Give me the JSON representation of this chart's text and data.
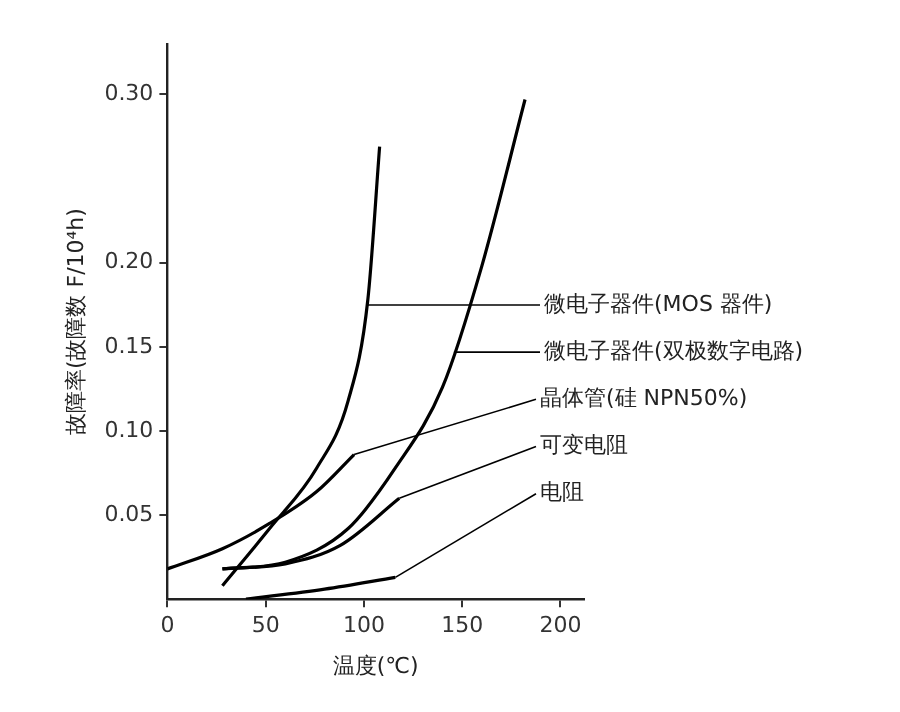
{
  "chart_data": {
    "type": "line",
    "xlabel": "温度(℃)",
    "ylabel": "故障率(故障数 F/10⁴h)",
    "xlim": [
      0,
      212
    ],
    "ylim": [
      0,
      0.33
    ],
    "xticks": [
      0,
      50,
      100,
      150,
      200
    ],
    "yticks": [
      0.05,
      {
        "value": 0.1,
        "label": "0.10"
      },
      0.15,
      {
        "value": 0.2,
        "label": "0.20"
      },
      {
        "value": 0.3,
        "label": "0.30"
      }
    ],
    "grid": false,
    "legend": "right",
    "marker": "none",
    "line_style": "solid",
    "series": [
      {
        "name": "微电子器件(MOS 器件)",
        "color": "#000000",
        "x": [
          28,
          52,
          76,
          92,
          102,
          108
        ],
        "values": [
          0.008,
          0.042,
          0.078,
          0.118,
          0.178,
          0.269
        ]
      },
      {
        "name": "微电子器件(双极数字电路)",
        "color": "#000000",
        "x": [
          28,
          60,
          92,
          116,
          140,
          160,
          182
        ],
        "values": [
          0.018,
          0.022,
          0.042,
          0.078,
          0.126,
          0.198,
          0.297
        ]
      },
      {
        "name": "晶体管(硅 NPN50%)",
        "color": "#000000",
        "x": [
          0,
          28,
          52,
          76,
          95
        ],
        "values": [
          0.018,
          0.03,
          0.045,
          0.064,
          0.086
        ]
      },
      {
        "name": "可变电阻",
        "color": "#000000",
        "x": [
          28,
          60,
          88,
          118
        ],
        "values": [
          0.018,
          0.021,
          0.032,
          0.06
        ]
      },
      {
        "name": "电阻",
        "color": "#000000",
        "x": [
          40,
          80,
          116
        ],
        "values": [
          0,
          0.006,
          0.013
        ]
      }
    ]
  }
}
